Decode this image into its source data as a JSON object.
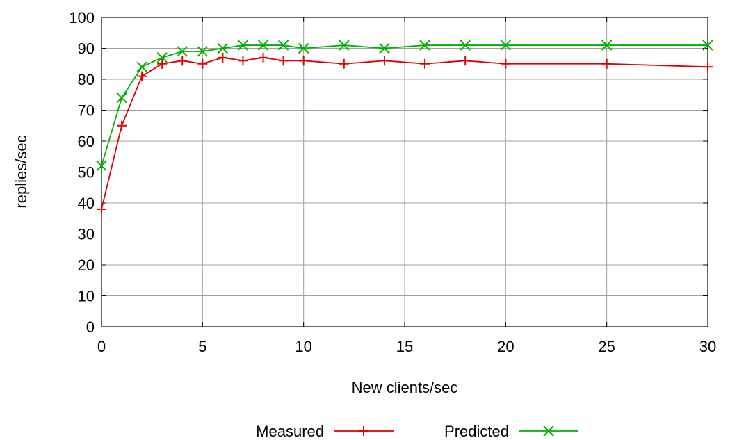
{
  "chart_data": {
    "type": "line",
    "title": "",
    "xlabel": "New clients/sec",
    "ylabel": "replies/sec",
    "xlim": [
      0,
      30
    ],
    "ylim": [
      0,
      100
    ],
    "x_ticks": [
      "0",
      "5",
      "10",
      "15",
      "20",
      "25",
      "30"
    ],
    "y_ticks": [
      "0",
      "10",
      "20",
      "30",
      "40",
      "50",
      "60",
      "70",
      "80",
      "90",
      "100"
    ],
    "grid": true,
    "legend_position": "bottom-center",
    "series": [
      {
        "name": "Measured",
        "color": "#e00000",
        "marker": "plus",
        "x": [
          0,
          1,
          2,
          3,
          4,
          5,
          6,
          7,
          8,
          9,
          10,
          12,
          14,
          16,
          18,
          20,
          25,
          30
        ],
        "y": [
          38,
          65,
          81,
          85,
          86,
          85,
          87,
          86,
          87,
          86,
          86,
          85,
          86,
          85,
          86,
          85,
          85,
          84
        ]
      },
      {
        "name": "Predicted",
        "color": "#00b000",
        "marker": "cross",
        "x": [
          0,
          1,
          2,
          3,
          4,
          5,
          6,
          7,
          8,
          9,
          10,
          12,
          14,
          16,
          18,
          20,
          25,
          30
        ],
        "y": [
          52,
          74,
          84,
          87,
          89,
          89,
          90,
          91,
          91,
          91,
          90,
          91,
          90,
          91,
          91,
          91,
          91,
          91
        ]
      }
    ]
  }
}
